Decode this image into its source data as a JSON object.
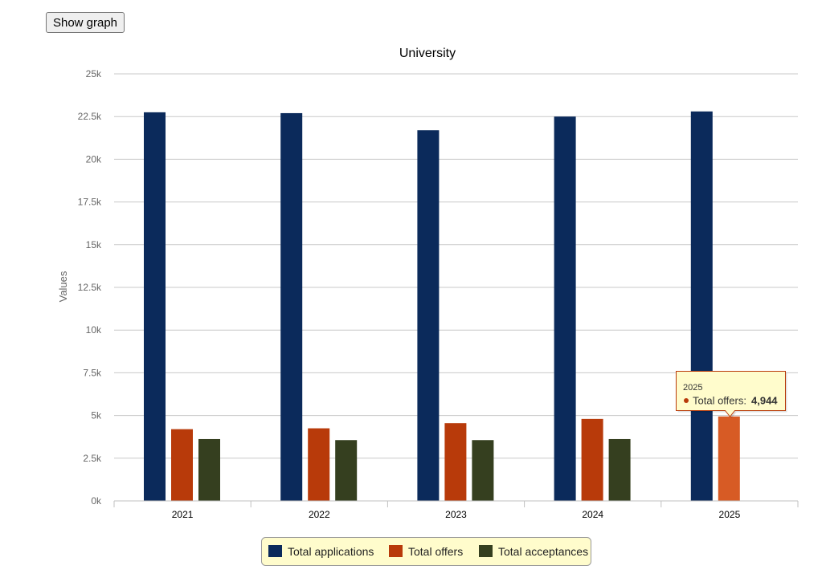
{
  "toolbar": {
    "show_graph_label": "Show graph"
  },
  "chart_data": {
    "type": "bar",
    "title": "University",
    "xlabel": "",
    "ylabel": "Values",
    "categories": [
      "2021",
      "2022",
      "2023",
      "2024",
      "2025"
    ],
    "series": [
      {
        "name": "Total applications",
        "color": "#0b2a5b",
        "values": [
          22750,
          22700,
          21700,
          22500,
          22800
        ]
      },
      {
        "name": "Total offers",
        "color": "#b83a0a",
        "values": [
          4200,
          4250,
          4550,
          4800,
          4944
        ]
      },
      {
        "name": "Total acceptances",
        "color": "#353f1f",
        "values": [
          3620,
          3560,
          3560,
          3620,
          null
        ]
      }
    ],
    "ylim": [
      0,
      25000
    ],
    "yticks": [
      0,
      2500,
      5000,
      7500,
      10000,
      12500,
      15000,
      17500,
      20000,
      22500,
      25000
    ],
    "ytick_labels": [
      "0k",
      "2.5k",
      "5k",
      "7.5k",
      "10k",
      "12.5k",
      "15k",
      "17.5k",
      "20k",
      "22.5k",
      "25k"
    ],
    "grid": true,
    "legend_position": "bottom",
    "tooltip": {
      "category": "2025",
      "series": "Total offers",
      "label": "Total offers:",
      "value_label": "4,944",
      "highlight_color": "#d75b25",
      "border_color": "#b83a0a",
      "background": "#fffccc"
    }
  }
}
